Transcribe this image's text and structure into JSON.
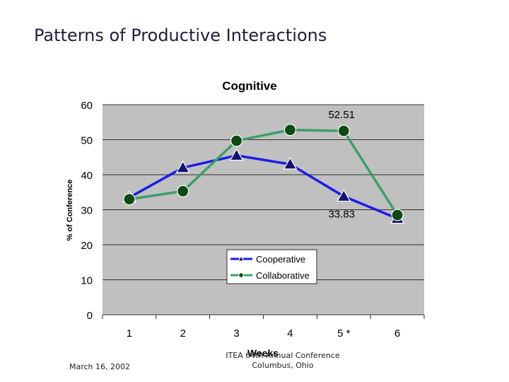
{
  "slide": {
    "title": "Patterns of Productive Interactions",
    "footer_date": "March 16, 2002",
    "footer_conference_line1": "ITEA 64th Annual Conference",
    "footer_conference_line2": "Columbus, Ohio"
  },
  "chart_data": {
    "type": "line",
    "title": "Cognitive",
    "xlabel": "Weeks",
    "ylabel": "% of Conference",
    "categories": [
      "1",
      "2",
      "3",
      "4",
      "5 *",
      "6"
    ],
    "ylim": [
      0,
      60
    ],
    "yticks": [
      0,
      10,
      20,
      30,
      40,
      50,
      60
    ],
    "grid": true,
    "legend": "lower-middle",
    "series": [
      {
        "name": "Cooperative",
        "values": [
          33.5,
          42.0,
          45.5,
          43.0,
          33.83,
          27.5
        ],
        "color": "#1c1ce8",
        "marker": "triangle",
        "marker_color": "#14146e"
      },
      {
        "name": "Collaborative",
        "values": [
          33.0,
          35.3,
          49.7,
          52.8,
          52.51,
          28.5
        ],
        "color": "#3d9e6b",
        "marker": "circle",
        "marker_color": "#0f4a12"
      }
    ],
    "annotations": [
      {
        "text": "52.51",
        "series": 1,
        "index": 4
      },
      {
        "text": "33.83",
        "series": 0,
        "index": 4
      }
    ],
    "plot_background": "#c0c0c0"
  }
}
